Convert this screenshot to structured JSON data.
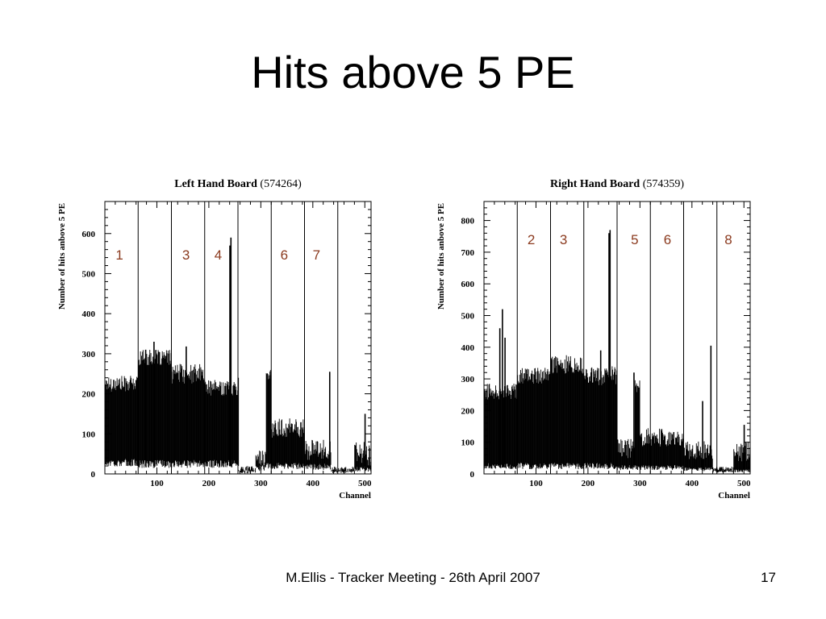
{
  "slide": {
    "title": "Hits above 5 PE",
    "footer": "M.Ellis - Tracker Meeting - 26th April 2007",
    "page_number": "17"
  },
  "chart_data": [
    {
      "type": "bar",
      "title": "Left Hand Board",
      "title_number": "(574264)",
      "xlabel": "Channel",
      "ylabel": "Number of hits anbove 5 PE",
      "xlim": [
        0,
        512
      ],
      "ylim": [
        0,
        680
      ],
      "x_ticks": [
        100,
        200,
        300,
        400,
        500
      ],
      "y_ticks": [
        0,
        100,
        200,
        300,
        400,
        500,
        600
      ],
      "dividers": [
        64,
        128,
        192,
        256,
        320,
        384,
        448
      ],
      "region_labels": [
        {
          "text": "1",
          "x": 28,
          "y": 535
        },
        {
          "text": "3",
          "x": 156,
          "y": 535
        },
        {
          "text": "4",
          "x": 218,
          "y": 535
        },
        {
          "text": "6",
          "x": 345,
          "y": 535
        },
        {
          "text": "7",
          "x": 407,
          "y": 535
        }
      ],
      "segments": [
        {
          "from": 0,
          "to": 64,
          "hi": 225,
          "lo": 28,
          "var": 20,
          "lowVar": 10
        },
        {
          "from": 64,
          "to": 128,
          "hi": 290,
          "lo": 25,
          "var": 20,
          "lowVar": 10
        },
        {
          "from": 128,
          "to": 192,
          "hi": 250,
          "lo": 25,
          "var": 25,
          "lowVar": 10
        },
        {
          "from": 192,
          "to": 256,
          "hi": 215,
          "lo": 25,
          "var": 20,
          "lowVar": 10
        },
        {
          "from": 256,
          "to": 290,
          "hi": 12,
          "lo": 5,
          "var": 8,
          "lowVar": 4
        },
        {
          "from": 290,
          "to": 310,
          "hi": 40,
          "lo": 15,
          "var": 20,
          "lowVar": 8
        },
        {
          "from": 310,
          "to": 320,
          "hi": 245,
          "lo": 20,
          "var": 15,
          "lowVar": 8
        },
        {
          "from": 320,
          "to": 384,
          "hi": 115,
          "lo": 20,
          "var": 25,
          "lowVar": 8
        },
        {
          "from": 384,
          "to": 435,
          "hi": 60,
          "lo": 18,
          "var": 25,
          "lowVar": 8
        },
        {
          "from": 435,
          "to": 480,
          "hi": 12,
          "lo": 5,
          "var": 6,
          "lowVar": 3
        },
        {
          "from": 480,
          "to": 512,
          "hi": 50,
          "lo": 12,
          "var": 30,
          "lowVar": 6
        }
      ],
      "spikes": [
        {
          "x": 62,
          "value": 240
        },
        {
          "x": 78,
          "value": 310
        },
        {
          "x": 94,
          "value": 330
        },
        {
          "x": 156,
          "value": 318
        },
        {
          "x": 240,
          "value": 570
        },
        {
          "x": 242,
          "value": 590
        },
        {
          "x": 256,
          "value": 240
        },
        {
          "x": 432,
          "value": 255
        },
        {
          "x": 500,
          "value": 150
        }
      ]
    },
    {
      "type": "bar",
      "title": "Right Hand Board",
      "title_number": "(574359)",
      "xlabel": "Channel",
      "ylabel": "Number of hits anbove 5 PE",
      "xlim": [
        0,
        512
      ],
      "ylim": [
        0,
        860
      ],
      "x_ticks": [
        100,
        200,
        300,
        400,
        500
      ],
      "y_ticks": [
        0,
        100,
        200,
        300,
        400,
        500,
        600,
        700,
        800
      ],
      "dividers": [
        64,
        128,
        192,
        256,
        320,
        384,
        448
      ],
      "region_labels": [
        {
          "text": "2",
          "x": 91,
          "y": 725
        },
        {
          "text": "3",
          "x": 153,
          "y": 725
        },
        {
          "text": "5",
          "x": 290,
          "y": 725
        },
        {
          "text": "6",
          "x": 353,
          "y": 725
        },
        {
          "text": "8",
          "x": 470,
          "y": 725
        }
      ],
      "segments": [
        {
          "from": 0,
          "to": 64,
          "hi": 260,
          "lo": 25,
          "var": 25,
          "lowVar": 10
        },
        {
          "from": 64,
          "to": 128,
          "hi": 310,
          "lo": 25,
          "var": 25,
          "lowVar": 10
        },
        {
          "from": 128,
          "to": 192,
          "hi": 345,
          "lo": 25,
          "var": 30,
          "lowVar": 10
        },
        {
          "from": 192,
          "to": 256,
          "hi": 310,
          "lo": 25,
          "var": 30,
          "lowVar": 10
        },
        {
          "from": 256,
          "to": 290,
          "hi": 80,
          "lo": 20,
          "var": 30,
          "lowVar": 8
        },
        {
          "from": 290,
          "to": 300,
          "hi": 275,
          "lo": 20,
          "var": 30,
          "lowVar": 8
        },
        {
          "from": 300,
          "to": 384,
          "hi": 115,
          "lo": 20,
          "var": 30,
          "lowVar": 8
        },
        {
          "from": 384,
          "to": 440,
          "hi": 75,
          "lo": 15,
          "var": 30,
          "lowVar": 6
        },
        {
          "from": 440,
          "to": 480,
          "hi": 15,
          "lo": 8,
          "var": 8,
          "lowVar": 4
        },
        {
          "from": 480,
          "to": 512,
          "hi": 70,
          "lo": 10,
          "var": 35,
          "lowVar": 5
        }
      ],
      "spikes": [
        {
          "x": 30,
          "value": 460
        },
        {
          "x": 35,
          "value": 520
        },
        {
          "x": 40,
          "value": 430
        },
        {
          "x": 224,
          "value": 390
        },
        {
          "x": 240,
          "value": 760
        },
        {
          "x": 242,
          "value": 770
        },
        {
          "x": 288,
          "value": 320
        },
        {
          "x": 420,
          "value": 230
        },
        {
          "x": 436,
          "value": 405
        },
        {
          "x": 500,
          "value": 155
        }
      ]
    }
  ]
}
